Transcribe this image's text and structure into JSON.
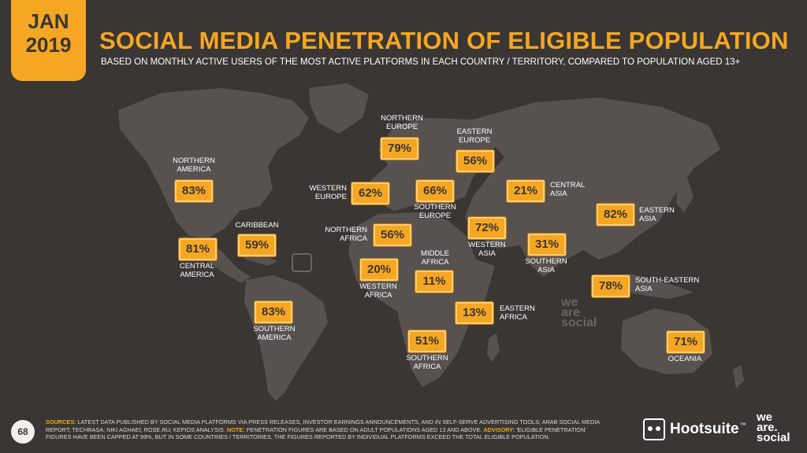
{
  "header": {
    "date_month": "JAN",
    "date_year": "2019",
    "title": "SOCIAL MEDIA PENETRATION OF ELIGIBLE POPULATION",
    "subtitle": "BASED ON MONTHLY ACTIVE USERS OF THE MOST ACTIVE PLATFORMS IN EACH COUNTRY / TERRITORY, COMPARED TO POPULATION AGED 13+"
  },
  "regions": {
    "northern_america": {
      "name_l1": "NORTHERN",
      "name_l2": "AMERICA",
      "value": "83%"
    },
    "caribbean": {
      "name_l1": "CARIBBEAN",
      "name_l2": "",
      "value": "59%"
    },
    "central_america": {
      "name_l1": "CENTRAL",
      "name_l2": "AMERICA",
      "value": "81%"
    },
    "southern_america": {
      "name_l1": "SOUTHERN",
      "name_l2": "AMERICA",
      "value": "83%"
    },
    "northern_europe": {
      "name_l1": "NORTHERN",
      "name_l2": "EUROPE",
      "value": "79%"
    },
    "western_europe": {
      "name_l1": "WESTERN",
      "name_l2": "EUROPE",
      "value": "62%"
    },
    "southern_europe": {
      "name_l1": "SOUTHERN",
      "name_l2": "EUROPE",
      "value": "66%"
    },
    "eastern_europe": {
      "name_l1": "EASTERN",
      "name_l2": "EUROPE",
      "value": "56%"
    },
    "northern_africa": {
      "name_l1": "NORTHERN",
      "name_l2": "AFRICA",
      "value": "56%"
    },
    "western_africa": {
      "name_l1": "WESTERN",
      "name_l2": "AFRICA",
      "value": "20%"
    },
    "middle_africa": {
      "name_l1": "MIDDLE",
      "name_l2": "AFRICA",
      "value": "11%"
    },
    "eastern_africa": {
      "name_l1": "EASTERN",
      "name_l2": "AFRICA",
      "value": "13%"
    },
    "southern_africa": {
      "name_l1": "SOUTHERN",
      "name_l2": "AFRICA",
      "value": "51%"
    },
    "western_asia": {
      "name_l1": "WESTERN",
      "name_l2": "ASIA",
      "value": "72%"
    },
    "central_asia": {
      "name_l1": "CENTRAL",
      "name_l2": "ASIA",
      "value": "21%"
    },
    "southern_asia": {
      "name_l1": "SOUTHERN",
      "name_l2": "ASIA",
      "value": "31%"
    },
    "eastern_asia": {
      "name_l1": "EASTERN",
      "name_l2": "ASIA",
      "value": "82%"
    },
    "south_eastern_asia": {
      "name_l1": "SOUTH-EASTERN",
      "name_l2": "ASIA",
      "value": "78%"
    },
    "oceania": {
      "name_l1": "OCEANIA",
      "name_l2": "",
      "value": "71%"
    }
  },
  "watermark": {
    "line1": "we",
    "line2": "are",
    "line3": "social"
  },
  "footer": {
    "page_number": "68",
    "sources_label": "SOURCES:",
    "sources_text": " LATEST DATA PUBLISHED BY SOCIAL MEDIA PLATFORMS VIA PRESS RELEASES, INVESTOR EARNINGS ANNOUNCEMENTS, AND IN SELF-SERVE ADVERTISING TOOLS; ARAB SOCIAL MEDIA REPORT; TECHRASA; NIKI AGHAEI; ROSE.RU; KEPIOS ANALYSIS. ",
    "note_label": "NOTE:",
    "note_text": " PENETRATION FIGURES ARE BASED ON ADULT POPULATIONS AGED 13 AND ABOVE. ",
    "advisory_label": "ADVISORY:",
    "advisory_text": " 'ELIGIBLE PENETRATION' FIGURES HAVE BEEN CAPPED AT 99%, BUT IN SOME COUNTRIES / TERRITORIES, THE FIGURES REPORTED BY INDIVIDUAL PLATFORMS EXCEED THE TOTAL ELIGIBLE POPULATION.",
    "brand_hootsuite": "Hootsuite",
    "brand_tm": "™",
    "brand_was_1": "we",
    "brand_was_2": "are.",
    "brand_was_3": "social"
  },
  "colors": {
    "background": "#3a3634",
    "accent": "#f5a623",
    "land": "#575250",
    "text": "#ffffff"
  }
}
